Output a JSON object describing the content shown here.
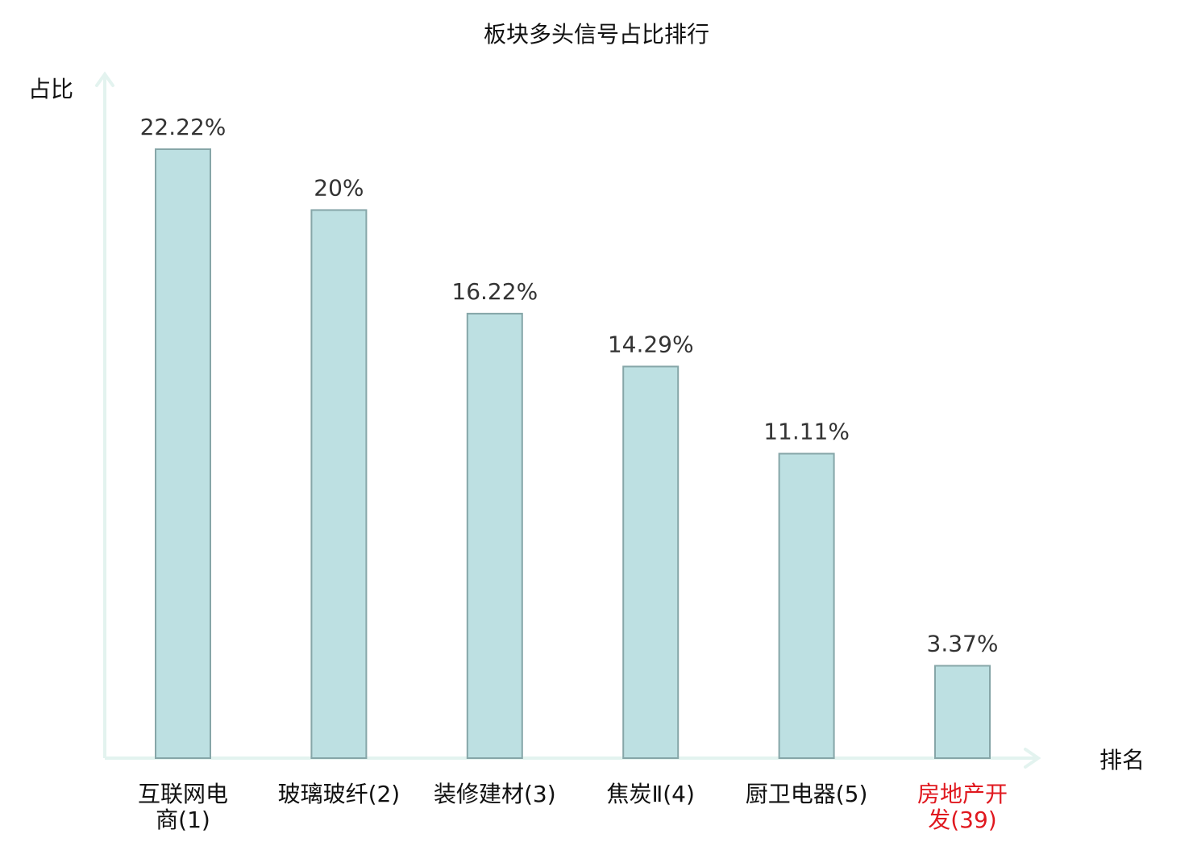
{
  "chart_data": {
    "type": "bar",
    "title": "板块多头信号占比排行",
    "ylabel": "占比",
    "xlabel": "排名",
    "ylim": [
      0,
      25
    ],
    "grid": false,
    "legend": "none",
    "categories": [
      {
        "lines": [
          "互联网电",
          "商(1)"
        ],
        "highlight": false
      },
      {
        "lines": [
          "玻璃玻纤(2)"
        ],
        "highlight": false
      },
      {
        "lines": [
          "装修建材(3)"
        ],
        "highlight": false
      },
      {
        "lines": [
          "焦炭Ⅱ(4)"
        ],
        "highlight": false
      },
      {
        "lines": [
          "厨卫电器(5)"
        ],
        "highlight": false
      },
      {
        "lines": [
          "房地产开",
          "发(39)"
        ],
        "highlight": true
      }
    ],
    "values": [
      22.22,
      20,
      16.22,
      14.29,
      11.11,
      3.37
    ],
    "value_labels": [
      "22.22%",
      "20%",
      "16.22%",
      "14.29%",
      "11.11%",
      "3.37%"
    ],
    "colors": {
      "bar_fill": "#bde0e2",
      "bar_stroke": "#86a6a8",
      "axis": "#e3f3ef",
      "label_text": "#111111",
      "value_text": "#333333",
      "highlight_text": "#e0181f"
    }
  }
}
